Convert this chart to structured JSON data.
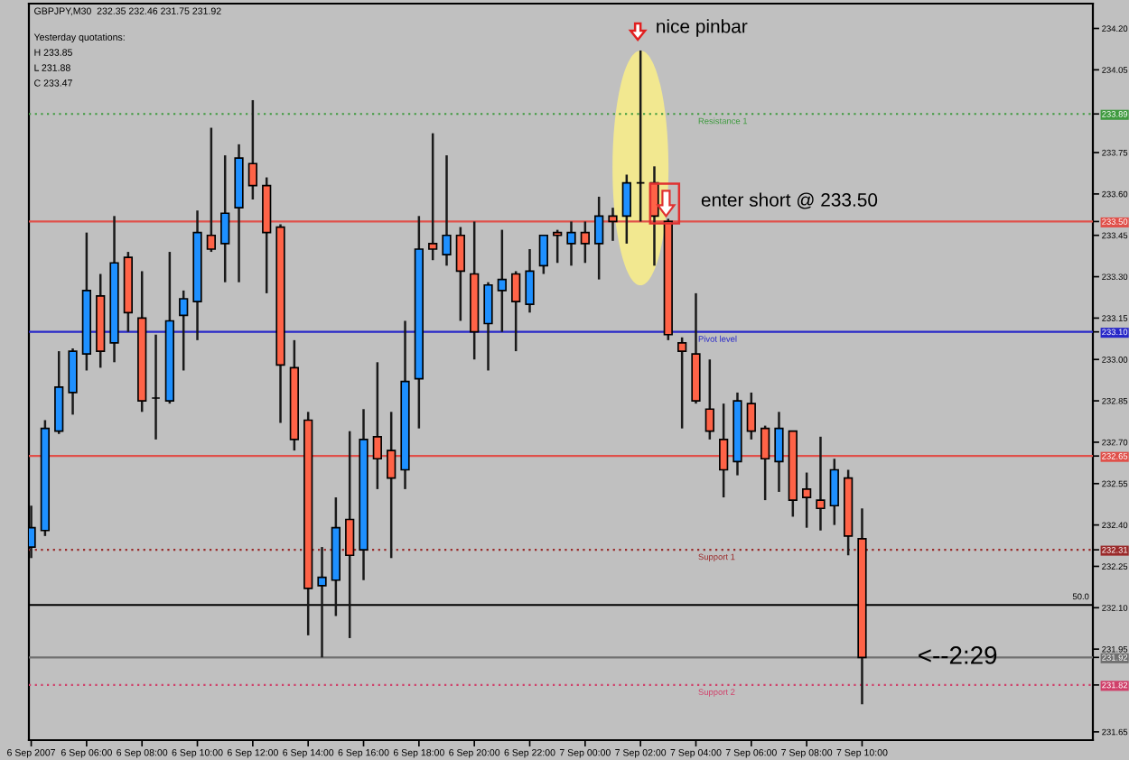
{
  "chart_data": {
    "type": "candlestick",
    "title": "GBPJPY,M30  232.35 232.46 231.75 231.92",
    "annotations": [
      "Yesterday quotations:",
      "H 233.85",
      "L 231.88",
      "C 233.47",
      {
        "text": "nice pinbar",
        "x": "2007-09-07T02:00",
        "y": 234.12
      },
      {
        "text": "enter short @ 233.50",
        "x": "2007-09-07T03:00",
        "y": 233.5
      },
      {
        "text": "<--2:29",
        "x": "2007-09-07T12:00",
        "y": 231.92
      },
      {
        "text": "50.0",
        "y": 232.11
      }
    ],
    "x": [
      "2007-09-06T04:00",
      "2007-09-06T04:30",
      "2007-09-06T05:00",
      "2007-09-06T05:30",
      "2007-09-06T06:00",
      "2007-09-06T06:30",
      "2007-09-06T07:00",
      "2007-09-06T07:30",
      "2007-09-06T08:00",
      "2007-09-06T08:30",
      "2007-09-06T09:00",
      "2007-09-06T09:30",
      "2007-09-06T10:00",
      "2007-09-06T10:30",
      "2007-09-06T11:00",
      "2007-09-06T11:30",
      "2007-09-06T12:00",
      "2007-09-06T12:30",
      "2007-09-06T13:00",
      "2007-09-06T13:30",
      "2007-09-06T14:00",
      "2007-09-06T14:30",
      "2007-09-06T15:00",
      "2007-09-06T15:30",
      "2007-09-06T16:00",
      "2007-09-06T16:30",
      "2007-09-06T17:00",
      "2007-09-06T17:30",
      "2007-09-06T18:00",
      "2007-09-06T18:30",
      "2007-09-06T19:00",
      "2007-09-06T19:30",
      "2007-09-06T20:00",
      "2007-09-06T20:30",
      "2007-09-06T21:00",
      "2007-09-06T21:30",
      "2007-09-06T22:00",
      "2007-09-06T22:30",
      "2007-09-06T23:00",
      "2007-09-06T23:30",
      "2007-09-07T00:00",
      "2007-09-07T00:30",
      "2007-09-07T01:00",
      "2007-09-07T01:30",
      "2007-09-07T02:00",
      "2007-09-07T02:30",
      "2007-09-07T03:00",
      "2007-09-07T03:30",
      "2007-09-07T04:00",
      "2007-09-07T04:30",
      "2007-09-07T05:00",
      "2007-09-07T05:30",
      "2007-09-07T06:00",
      "2007-09-07T06:30",
      "2007-09-07T07:00",
      "2007-09-07T07:30",
      "2007-09-07T08:00",
      "2007-09-07T08:30",
      "2007-09-07T09:00",
      "2007-09-07T09:30",
      "2007-09-07T10:00"
    ],
    "ohlc": [
      [
        232.32,
        232.47,
        232.28,
        232.39
      ],
      [
        232.38,
        232.78,
        232.36,
        232.75
      ],
      [
        232.74,
        233.03,
        232.73,
        232.9
      ],
      [
        232.88,
        233.04,
        232.8,
        233.03
      ],
      [
        233.02,
        233.46,
        232.96,
        233.25
      ],
      [
        233.23,
        233.31,
        232.97,
        233.03
      ],
      [
        233.06,
        233.52,
        232.99,
        233.35
      ],
      [
        233.37,
        233.39,
        233.1,
        233.17
      ],
      [
        233.15,
        233.32,
        232.81,
        232.85
      ],
      [
        232.86,
        233.09,
        232.71,
        232.86
      ],
      [
        232.85,
        233.39,
        232.84,
        233.14
      ],
      [
        233.16,
        233.25,
        232.96,
        233.22
      ],
      [
        233.21,
        233.54,
        233.07,
        233.46
      ],
      [
        233.45,
        233.84,
        233.39,
        233.4
      ],
      [
        233.42,
        233.74,
        233.28,
        233.53
      ],
      [
        233.55,
        233.78,
        233.28,
        233.73
      ],
      [
        233.71,
        233.94,
        233.58,
        233.63
      ],
      [
        233.63,
        233.66,
        233.24,
        233.46
      ],
      [
        233.48,
        233.49,
        232.77,
        232.98
      ],
      [
        232.97,
        233.07,
        232.67,
        232.71
      ],
      [
        232.78,
        232.81,
        232.0,
        232.17
      ],
      [
        232.18,
        232.32,
        231.92,
        232.21
      ],
      [
        232.2,
        232.5,
        232.07,
        232.39
      ],
      [
        232.42,
        232.74,
        231.99,
        232.29
      ],
      [
        232.31,
        232.82,
        232.2,
        232.71
      ],
      [
        232.72,
        232.99,
        232.53,
        232.64
      ],
      [
        232.67,
        232.81,
        232.28,
        232.57
      ],
      [
        232.6,
        233.14,
        232.53,
        232.92
      ],
      [
        232.93,
        233.52,
        232.75,
        233.4
      ],
      [
        233.42,
        233.82,
        233.36,
        233.4
      ],
      [
        233.38,
        233.74,
        233.34,
        233.45
      ],
      [
        233.45,
        233.48,
        233.14,
        233.32
      ],
      [
        233.31,
        233.5,
        233.0,
        233.1
      ],
      [
        233.13,
        233.28,
        232.96,
        233.27
      ],
      [
        233.25,
        233.47,
        233.1,
        233.29
      ],
      [
        233.31,
        233.32,
        233.03,
        233.21
      ],
      [
        233.2,
        233.4,
        233.17,
        233.32
      ],
      [
        233.34,
        233.45,
        233.31,
        233.45
      ],
      [
        233.46,
        233.47,
        233.35,
        233.45
      ],
      [
        233.42,
        233.5,
        233.34,
        233.46
      ],
      [
        233.46,
        233.5,
        233.35,
        233.42
      ],
      [
        233.42,
        233.59,
        233.29,
        233.52
      ],
      [
        233.52,
        233.55,
        233.43,
        233.5
      ],
      [
        233.52,
        233.67,
        233.42,
        233.64
      ],
      [
        233.64,
        234.12,
        233.5,
        233.64
      ],
      [
        233.64,
        233.7,
        233.34,
        233.52
      ],
      [
        233.5,
        233.51,
        233.07,
        233.09
      ],
      [
        233.06,
        233.08,
        232.75,
        233.03
      ],
      [
        233.02,
        233.24,
        232.84,
        232.85
      ],
      [
        232.82,
        233.0,
        232.71,
        232.74
      ],
      [
        232.71,
        232.84,
        232.5,
        232.6
      ],
      [
        232.63,
        232.88,
        232.58,
        232.85
      ],
      [
        232.84,
        232.88,
        232.71,
        232.74
      ],
      [
        232.75,
        232.76,
        232.49,
        232.64
      ],
      [
        232.63,
        232.81,
        232.52,
        232.75
      ],
      [
        232.74,
        232.74,
        232.43,
        232.49
      ],
      [
        232.53,
        232.59,
        232.39,
        232.5
      ],
      [
        232.49,
        232.72,
        232.38,
        232.46
      ],
      [
        232.47,
        232.64,
        232.4,
        232.6
      ],
      [
        232.57,
        232.6,
        232.29,
        232.36
      ],
      [
        232.35,
        232.46,
        231.75,
        231.92
      ]
    ],
    "colors": [
      "#1e90ff",
      "#1e90ff",
      "#1e90ff",
      "#1e90ff",
      "#1e90ff",
      "#ff6347",
      "#1e90ff",
      "#ff6347",
      "#ff6347",
      "#000000",
      "#1e90ff",
      "#1e90ff",
      "#1e90ff",
      "#ff6347",
      "#1e90ff",
      "#1e90ff",
      "#ff6347",
      "#ff6347",
      "#ff6347",
      "#ff6347",
      "#ff6347",
      "#1e90ff",
      "#1e90ff",
      "#ff6347",
      "#1e90ff",
      "#ff6347",
      "#ff6347",
      "#1e90ff",
      "#1e90ff",
      "#ff6347",
      "#1e90ff",
      "#ff6347",
      "#ff6347",
      "#1e90ff",
      "#1e90ff",
      "#ff6347",
      "#1e90ff",
      "#1e90ff",
      "#ff6347",
      "#1e90ff",
      "#ff6347",
      "#1e90ff",
      "#ff6347",
      "#1e90ff",
      "#000000",
      "#ff6347",
      "#ff6347",
      "#ff6347",
      "#ff6347",
      "#ff6347",
      "#ff6347",
      "#1e90ff",
      "#ff6347",
      "#ff6347",
      "#1e90ff",
      "#ff6347",
      "#ff6347",
      "#ff6347",
      "#1e90ff",
      "#ff6347",
      "#ff6347"
    ],
    "xlim": [
      "2007-09-06T03:55",
      "2007-09-07T18:20"
    ],
    "xticks": [
      {
        "value": "2007-09-06T04:00",
        "label": "6 Sep 2007"
      },
      {
        "value": "2007-09-06T06:00",
        "label": "6 Sep 06:00"
      },
      {
        "value": "2007-09-06T08:00",
        "label": "6 Sep 08:00"
      },
      {
        "value": "2007-09-06T10:00",
        "label": "6 Sep 10:00"
      },
      {
        "value": "2007-09-06T12:00",
        "label": "6 Sep 12:00"
      },
      {
        "value": "2007-09-06T14:00",
        "label": "6 Sep 14:00"
      },
      {
        "value": "2007-09-06T16:00",
        "label": "6 Sep 16:00"
      },
      {
        "value": "2007-09-06T18:00",
        "label": "6 Sep 18:00"
      },
      {
        "value": "2007-09-06T20:00",
        "label": "6 Sep 20:00"
      },
      {
        "value": "2007-09-06T22:00",
        "label": "6 Sep 22:00"
      },
      {
        "value": "2007-09-07T00:00",
        "label": "7 Sep 00:00"
      },
      {
        "value": "2007-09-07T02:00",
        "label": "7 Sep 02:00"
      },
      {
        "value": "2007-09-07T04:00",
        "label": "7 Sep 04:00"
      },
      {
        "value": "2007-09-07T06:00",
        "label": "7 Sep 06:00"
      },
      {
        "value": "2007-09-07T08:00",
        "label": "7 Sep 08:00"
      },
      {
        "value": "2007-09-07T10:00",
        "label": "7 Sep 10:00"
      }
    ],
    "ylim": [
      231.62,
      234.29
    ],
    "yticks": [
      231.65,
      231.82,
      231.92,
      231.95,
      {
        "value": 232.1,
        "label": "232.10"
      },
      232.25,
      232.31,
      {
        "value": 232.4,
        "label": "232.40"
      },
      232.55,
      232.65,
      {
        "value": 232.7,
        "label": "232.70"
      },
      232.85,
      {
        "value": 233,
        "label": "233.00"
      },
      {
        "value": 233.1,
        "label": "233.10"
      },
      233.15,
      {
        "value": 233.3,
        "label": "233.30"
      },
      233.45,
      {
        "value": 233.5,
        "label": "233.50"
      },
      {
        "value": 233.6,
        "label": "233.60"
      },
      233.75,
      233.89,
      234.05,
      {
        "value": 234.2,
        "label": "234.20"
      }
    ],
    "ref_lines": [
      {
        "axis": "y",
        "value": 233.89,
        "label": "Resistance 1",
        "color": "#3f9a3f",
        "line_style": "dotted"
      },
      {
        "axis": "y",
        "value": 233.5,
        "color": "#e0504a"
      },
      {
        "axis": "y",
        "value": 233.1,
        "label": "Pivot level",
        "color": "#2828c8"
      },
      {
        "axis": "y",
        "value": 232.65,
        "color": "#e0504a"
      },
      {
        "axis": "y",
        "value": 232.31,
        "label": "Support 1",
        "color": "#9a2a2a",
        "line_style": "dotted"
      },
      {
        "axis": "y",
        "value": 232.11,
        "color": "#000000"
      },
      {
        "axis": "y",
        "value": 231.92,
        "color": "#707070"
      },
      {
        "axis": "y",
        "value": 231.82,
        "label": "Support 2",
        "color": "#d0406a",
        "line_style": "dotted"
      }
    ]
  }
}
